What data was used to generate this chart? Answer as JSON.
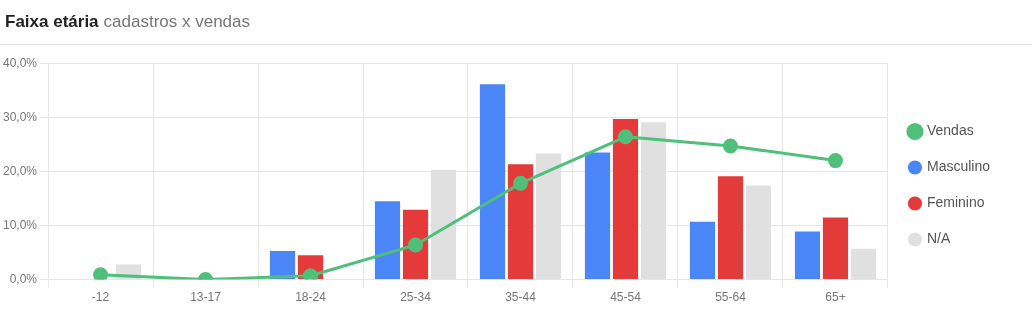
{
  "chart_data": {
    "type": "bar",
    "title": "Faixa etária",
    "subtitle": "cadastros x vendas",
    "categories": [
      "-12",
      "13-17",
      "18-24",
      "25-34",
      "35-44",
      "45-54",
      "55-64",
      "65+"
    ],
    "series": [
      {
        "name": "Vendas",
        "type": "line",
        "color": "#4fc07a",
        "marker": "circle",
        "values": [
          0.9,
          0,
          0.7,
          6.4,
          17.8,
          26.4,
          24.7,
          22
        ]
      },
      {
        "name": "Masculino",
        "color": "#4a86f7",
        "values": [
          0,
          0,
          5.3,
          14.5,
          36.1,
          23.5,
          10.7,
          8.9
        ]
      },
      {
        "name": "Feminino",
        "color": "#e53a3a",
        "values": [
          0,
          0,
          4.5,
          12.9,
          21.3,
          29.7,
          19.1,
          11.5
        ]
      },
      {
        "name": "N/A",
        "color": "#e0e0e0",
        "values": [
          2.8,
          0,
          0,
          20.3,
          23.3,
          29.1,
          17.4,
          5.7
        ]
      }
    ],
    "ylim": [
      0,
      40
    ],
    "yticks": [
      {
        "value": 0,
        "label": "0,0%"
      },
      {
        "value": 10,
        "label": "10,0%"
      },
      {
        "value": 20,
        "label": "20,0%"
      },
      {
        "value": 30,
        "label": "30,0%"
      },
      {
        "value": 40,
        "label": "40,0%"
      }
    ],
    "grid": true,
    "legend": "right"
  }
}
